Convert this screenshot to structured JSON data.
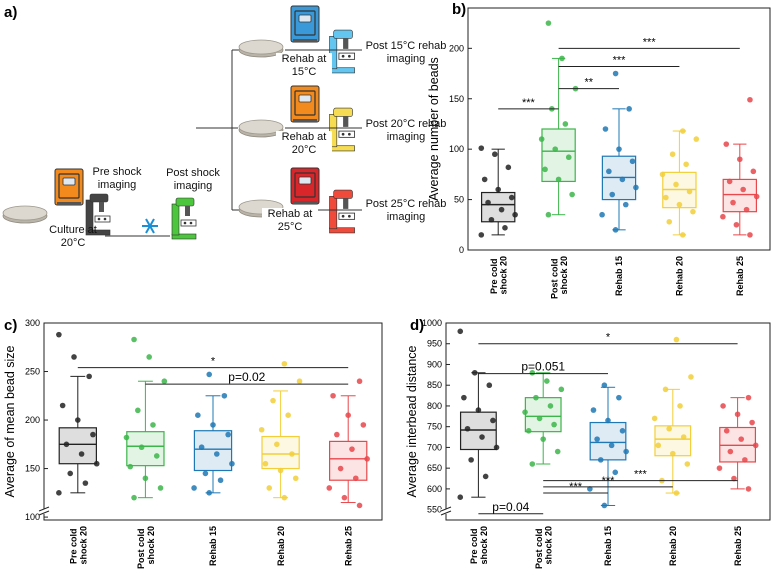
{
  "diagram": {
    "label": "a)",
    "culture": "Culture at 20°C",
    "pre_shock": "Pre shock imaging",
    "post_shock": "Post shock imaging",
    "branches": [
      {
        "rehab": "Rehab at 15°C",
        "imaging": "Post 15°C rehab imaging"
      },
      {
        "rehab": "Rehab at 20°C",
        "imaging": "Post 20°C rehab imaging"
      },
      {
        "rehab": "Rehab at 25°C",
        "imaging": "Post 25°C rehab imaging"
      }
    ]
  },
  "chart_data": [
    {
      "type": "box",
      "panel_label": "b)",
      "y_label": "Average number of beads",
      "categories": [
        "Pre cold shock 20",
        "Post cold shock 20",
        "Rehab 15",
        "Rehab 20",
        "Rehab 25"
      ],
      "ylim": [
        0,
        240
      ],
      "yticks": [
        0,
        50,
        100,
        150,
        200
      ],
      "y_axis_break": false,
      "boxes": [
        {
          "color": "#222222",
          "whisker_low": 15,
          "q1": 28,
          "median": 45,
          "q3": 57,
          "whisker_high": 100,
          "points": [
            101,
            95,
            82,
            70,
            60,
            52,
            47,
            40,
            35,
            30,
            22,
            15
          ]
        },
        {
          "color": "#3cb54a",
          "whisker_low": 35,
          "q1": 68,
          "median": 98,
          "q3": 120,
          "whisker_high": 190,
          "points": [
            225,
            190,
            160,
            140,
            125,
            110,
            100,
            92,
            80,
            70,
            55,
            35
          ]
        },
        {
          "color": "#1f78b4",
          "whisker_low": 20,
          "q1": 50,
          "median": 72,
          "q3": 93,
          "whisker_high": 140,
          "points": [
            175,
            140,
            120,
            100,
            88,
            78,
            70,
            62,
            55,
            45,
            35,
            20
          ]
        },
        {
          "color": "#f2cf3a",
          "whisker_low": 15,
          "q1": 42,
          "median": 60,
          "q3": 77,
          "whisker_high": 118,
          "points": [
            118,
            110,
            95,
            85,
            75,
            65,
            58,
            52,
            45,
            38,
            28,
            15
          ]
        },
        {
          "color": "#e8474b",
          "whisker_low": 15,
          "q1": 38,
          "median": 55,
          "q3": 70,
          "whisker_high": 105,
          "points": [
            149,
            105,
            90,
            78,
            68,
            60,
            53,
            47,
            40,
            33,
            25,
            15
          ]
        }
      ],
      "annotations": [
        {
          "label": "***",
          "between": [
            "Pre cold shock 20",
            "Post cold shock 20"
          ],
          "y": 140
        },
        {
          "label": "**",
          "between": [
            "Post cold shock 20",
            "Rehab 15"
          ],
          "y": 160
        },
        {
          "label": "***",
          "between": [
            "Post cold shock 20",
            "Rehab 20"
          ],
          "y": 182
        },
        {
          "label": "***",
          "between": [
            "Post cold shock 20",
            "Rehab 25"
          ],
          "y": 200
        }
      ]
    },
    {
      "type": "box",
      "panel_label": "c)",
      "y_label": "Average of mean bead size",
      "categories": [
        "Pre cold shock 20",
        "Post cold shock 20",
        "Rehab 15",
        "Rehab 20",
        "Rehab 25"
      ],
      "ylim": [
        97,
        300
      ],
      "yticks": [
        100,
        150,
        200,
        250,
        300
      ],
      "y_axis_break": true,
      "boxes": [
        {
          "color": "#222222",
          "whisker_low": 125,
          "q1": 155,
          "median": 175,
          "q3": 192,
          "whisker_high": 245,
          "points": [
            288,
            265,
            245,
            215,
            200,
            185,
            175,
            165,
            155,
            145,
            135,
            125
          ]
        },
        {
          "color": "#3cb54a",
          "whisker_low": 120,
          "q1": 153,
          "median": 173,
          "q3": 188,
          "whisker_high": 240,
          "points": [
            283,
            265,
            240,
            210,
            195,
            182,
            172,
            163,
            152,
            140,
            130,
            120
          ]
        },
        {
          "color": "#1f78b4",
          "whisker_low": 125,
          "q1": 148,
          "median": 170,
          "q3": 189,
          "whisker_high": 225,
          "points": [
            247,
            225,
            205,
            195,
            185,
            172,
            165,
            155,
            145,
            138,
            130,
            125
          ]
        },
        {
          "color": "#f2cf3a",
          "whisker_low": 120,
          "q1": 150,
          "median": 165,
          "q3": 183,
          "whisker_high": 230,
          "points": [
            258,
            240,
            220,
            205,
            190,
            175,
            165,
            155,
            148,
            140,
            130,
            120
          ]
        },
        {
          "color": "#e8474b",
          "whisker_low": 115,
          "q1": 138,
          "median": 160,
          "q3": 178,
          "whisker_high": 225,
          "points": [
            240,
            225,
            205,
            195,
            185,
            170,
            160,
            150,
            140,
            130,
            120,
            112
          ]
        }
      ],
      "annotations": [
        {
          "label": "*",
          "between": [
            "Pre cold shock 20",
            "Rehab 25"
          ],
          "y": 254
        },
        {
          "label": "p=0.02",
          "between": [
            "Post cold shock 20",
            "Rehab 25"
          ],
          "y": 237
        }
      ]
    },
    {
      "type": "box",
      "panel_label": "d)",
      "y_label": "Average interbead distance",
      "categories": [
        "Pre cold shock 20",
        "Post cold shock 20",
        "Rehab 15",
        "Rehab 20",
        "Rehab 25"
      ],
      "ylim": [
        525,
        1000
      ],
      "yticks": [
        550,
        600,
        650,
        700,
        750,
        800,
        850,
        900,
        950,
        1000
      ],
      "y_axis_break": true,
      "boxes": [
        {
          "color": "#222222",
          "whisker_low": 580,
          "q1": 695,
          "median": 742,
          "q3": 785,
          "whisker_high": 880,
          "points": [
            980,
            880,
            850,
            820,
            790,
            765,
            745,
            725,
            700,
            670,
            630,
            580
          ]
        },
        {
          "color": "#3cb54a",
          "whisker_low": 660,
          "q1": 738,
          "median": 775,
          "q3": 820,
          "whisker_high": 880,
          "points": [
            880,
            860,
            840,
            820,
            800,
            785,
            770,
            755,
            740,
            720,
            690,
            660
          ]
        },
        {
          "color": "#1f78b4",
          "whisker_low": 560,
          "q1": 670,
          "median": 712,
          "q3": 760,
          "whisker_high": 845,
          "points": [
            850,
            820,
            790,
            765,
            740,
            720,
            705,
            690,
            670,
            640,
            600,
            560
          ]
        },
        {
          "color": "#f2cf3a",
          "whisker_low": 590,
          "q1": 680,
          "median": 720,
          "q3": 752,
          "whisker_high": 840,
          "points": [
            960,
            870,
            840,
            800,
            770,
            745,
            725,
            705,
            685,
            660,
            620,
            590
          ]
        },
        {
          "color": "#e8474b",
          "whisker_low": 600,
          "q1": 665,
          "median": 705,
          "q3": 748,
          "whisker_high": 820,
          "points": [
            820,
            800,
            780,
            760,
            740,
            720,
            705,
            690,
            670,
            650,
            625,
            600
          ]
        }
      ],
      "annotations": [
        {
          "label": "*",
          "between": [
            "Pre cold shock 20",
            "Rehab 25"
          ],
          "y": 950
        },
        {
          "label": "p=0.051",
          "between": [
            "Pre cold shock 20",
            "Rehab 15"
          ],
          "y": 878
        },
        {
          "label": "***",
          "between": [
            "Post cold shock 20",
            "Rehab 25"
          ],
          "y": 620
        },
        {
          "label": "***",
          "between": [
            "Post cold shock 20",
            "Rehab 20"
          ],
          "y": 605
        },
        {
          "label": "***",
          "between": [
            "Post cold shock 20",
            "Rehab 15"
          ],
          "y": 590
        },
        {
          "label": "p=0.04",
          "between": [
            "Pre cold shock 20",
            "Post cold shock 20"
          ],
          "y": 540
        }
      ]
    }
  ]
}
